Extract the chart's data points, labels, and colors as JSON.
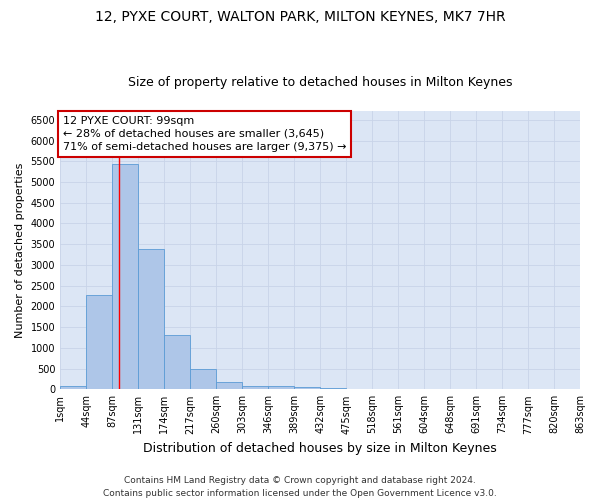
{
  "title1": "12, PYXE COURT, WALTON PARK, MILTON KEYNES, MK7 7HR",
  "title2": "Size of property relative to detached houses in Milton Keynes",
  "xlabel": "Distribution of detached houses by size in Milton Keynes",
  "ylabel": "Number of detached properties",
  "footer1": "Contains HM Land Registry data © Crown copyright and database right 2024.",
  "footer2": "Contains public sector information licensed under the Open Government Licence v3.0.",
  "bin_labels": [
    "1sqm",
    "44sqm",
    "87sqm",
    "131sqm",
    "174sqm",
    "217sqm",
    "260sqm",
    "303sqm",
    "346sqm",
    "389sqm",
    "432sqm",
    "475sqm",
    "518sqm",
    "561sqm",
    "604sqm",
    "648sqm",
    "691sqm",
    "734sqm",
    "777sqm",
    "820sqm",
    "863sqm"
  ],
  "bar_values": [
    75,
    2280,
    5430,
    3380,
    1310,
    480,
    165,
    80,
    75,
    55,
    20,
    15,
    0,
    0,
    0,
    0,
    0,
    0,
    0,
    0
  ],
  "bar_color": "#aec6e8",
  "bar_edge_color": "#5b9bd5",
  "annotation_line1": "12 PYXE COURT: 99sqm",
  "annotation_line2": "← 28% of detached houses are smaller (3,645)",
  "annotation_line3": "71% of semi-detached houses are larger (9,375) →",
  "annotation_box_color": "#ffffff",
  "annotation_box_edge": "#cc0000",
  "property_line_x": 2.28,
  "ylim_max": 6700,
  "yticks": [
    0,
    500,
    1000,
    1500,
    2000,
    2500,
    3000,
    3500,
    4000,
    4500,
    5000,
    5500,
    6000,
    6500
  ],
  "grid_color": "#c8d4e8",
  "bg_color": "#dce6f5",
  "title1_fontsize": 10,
  "title2_fontsize": 9,
  "xlabel_fontsize": 9,
  "ylabel_fontsize": 8,
  "tick_fontsize": 7,
  "footer_fontsize": 6.5,
  "annot_fontsize": 8
}
